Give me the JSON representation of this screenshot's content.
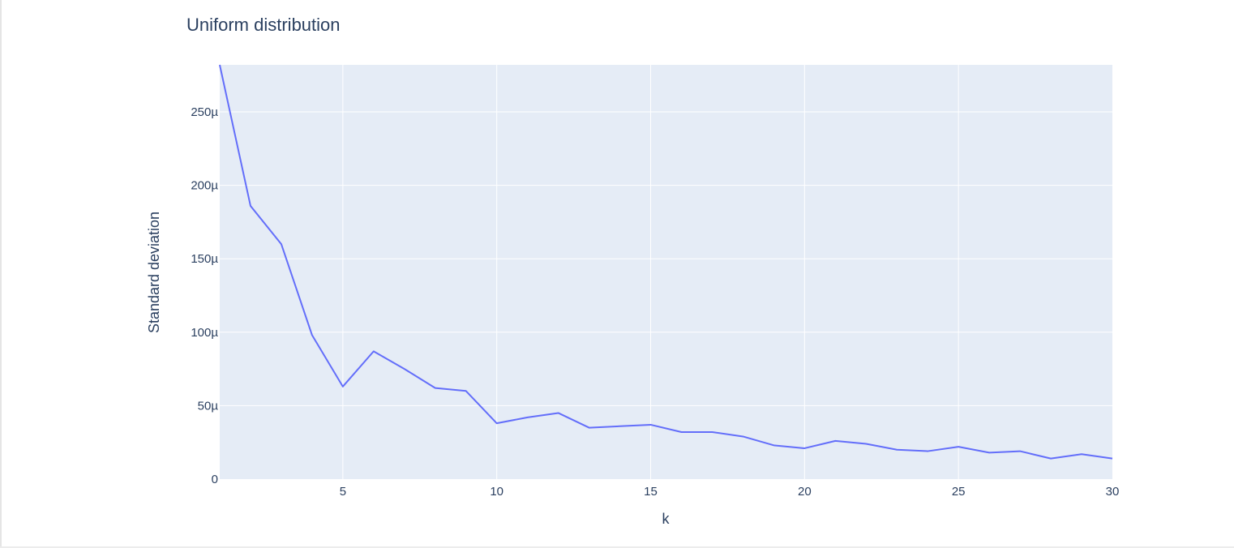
{
  "chart_data": {
    "type": "line",
    "title": "Uniform distribution",
    "xlabel": "k",
    "ylabel": "Standard deviation",
    "xlim": [
      1,
      30
    ],
    "ylim": [
      0,
      282
    ],
    "grid": true,
    "y_unit_suffix": "µ",
    "x_ticks": [
      5,
      10,
      15,
      20,
      25,
      30
    ],
    "x_tick_labels": [
      "5",
      "10",
      "15",
      "20",
      "25",
      "30"
    ],
    "y_ticks": [
      0,
      50,
      100,
      150,
      200,
      250
    ],
    "y_tick_labels": [
      "0",
      "50µ",
      "100µ",
      "150µ",
      "200µ",
      "250µ"
    ],
    "line_color": "#636efa",
    "plot_bg": "#e5ecf6",
    "grid_color": "#ffffff",
    "series": [
      {
        "x": [
          1,
          2,
          3,
          4,
          5,
          6,
          7,
          8,
          9,
          10,
          11,
          12,
          13,
          14,
          15,
          16,
          17,
          18,
          19,
          20,
          21,
          22,
          23,
          24,
          25,
          26,
          27,
          28,
          29,
          30
        ],
        "values": [
          282,
          186,
          160,
          98,
          63,
          87,
          75,
          62,
          60,
          38,
          42,
          45,
          35,
          36,
          37,
          32,
          32,
          29,
          23,
          21,
          26,
          24,
          20,
          19,
          22,
          18,
          19,
          14,
          17,
          14
        ]
      }
    ]
  }
}
